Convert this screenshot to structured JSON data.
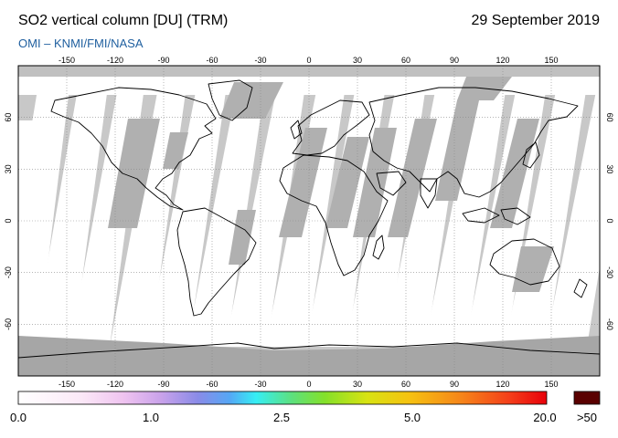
{
  "header": {
    "title": "SO2 vertical column [DU] (TRM)",
    "date": "29 September 2019",
    "source": "OMI  –  KNMI/FMI/NASA"
  },
  "map": {
    "projection": "equirectangular",
    "lon_range": [
      -180,
      180
    ],
    "lat_range": [
      -90,
      90
    ],
    "lon_ticks": [
      "-150",
      "-120",
      "-90",
      "-60",
      "-30",
      "0",
      "30",
      "60",
      "90",
      "120",
      "150"
    ],
    "lat_ticks": [
      "60",
      "30",
      "0",
      "-30",
      "-60"
    ],
    "colors": {
      "background_no_data": "#c8c8c8",
      "polar_night": "#a6a6a6",
      "swath_gap": "#b5b5b5",
      "low_so2": "#ffffff",
      "coastline": "#000000",
      "grid": "#888888"
    }
  },
  "colorbar": {
    "labels": [
      "0.0",
      "1.0",
      "2.5",
      "5.0",
      "20.0"
    ],
    "overflow_label": ">50",
    "overflow_color": "#5a0000"
  }
}
